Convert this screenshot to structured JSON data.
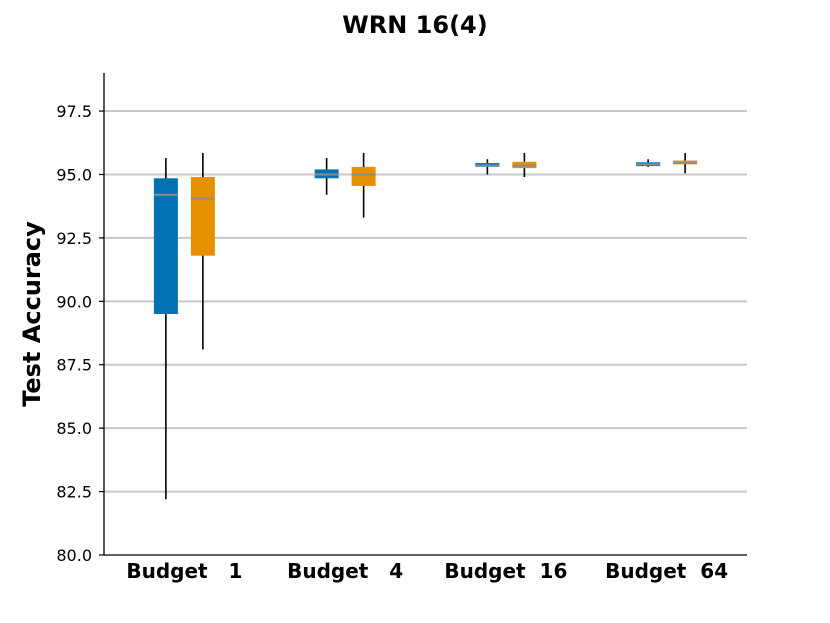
{
  "chart_data": {
    "type": "box",
    "title": "WRN 16(4)",
    "xlabel": "",
    "ylabel": "Test Accuracy",
    "ylim": [
      80.0,
      99.0
    ],
    "yticks": [
      "80.0",
      "82.5",
      "85.0",
      "87.5",
      "90.0",
      "92.5",
      "95.0",
      "97.5"
    ],
    "grid": true,
    "categories": [
      "Budget   1",
      "Budget   4",
      "Budget  16",
      "Budget  64"
    ],
    "series": [
      {
        "color": "#0072b2",
        "boxes": [
          {
            "whislo": 82.2,
            "q1": 89.5,
            "med": 94.2,
            "q3": 94.85,
            "whishi": 95.65
          },
          {
            "whislo": 94.2,
            "q1": 94.85,
            "med": 95.0,
            "q3": 95.2,
            "whishi": 95.65
          },
          {
            "whislo": 95.0,
            "q1": 95.3,
            "med": 95.35,
            "q3": 95.45,
            "whishi": 95.6
          },
          {
            "whislo": 95.3,
            "q1": 95.33,
            "med": 95.4,
            "q3": 95.48,
            "whishi": 95.6
          }
        ]
      },
      {
        "color": "#e69000",
        "boxes": [
          {
            "whislo": 88.1,
            "q1": 91.8,
            "med": 94.05,
            "q3": 94.9,
            "whishi": 95.85
          },
          {
            "whislo": 93.3,
            "q1": 94.55,
            "med": 95.0,
            "q3": 95.3,
            "whishi": 95.85
          },
          {
            "whislo": 94.9,
            "q1": 95.25,
            "med": 95.35,
            "q3": 95.5,
            "whishi": 95.85
          },
          {
            "whislo": 95.05,
            "q1": 95.4,
            "med": 95.45,
            "q3": 95.55,
            "whishi": 95.85
          }
        ]
      }
    ]
  }
}
